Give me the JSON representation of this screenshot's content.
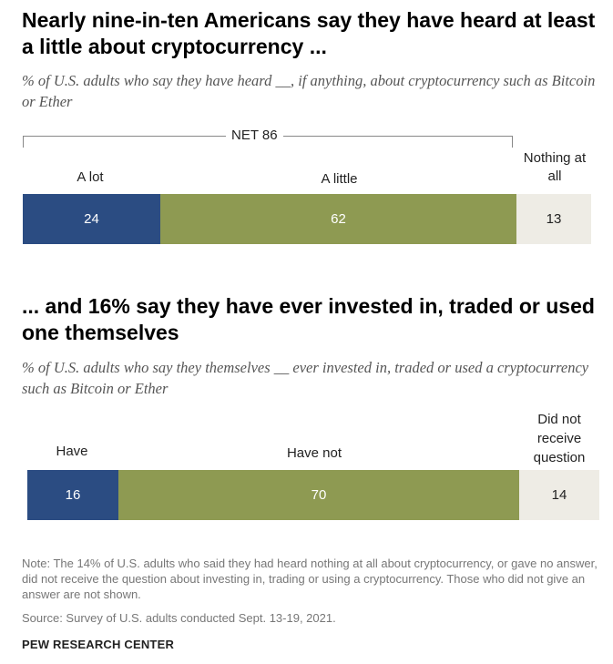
{
  "chart_data": [
    {
      "type": "bar",
      "orientation": "horizontal-stacked",
      "title": "Nearly nine-in-ten Americans say they have heard at least a little about cryptocurrency ...",
      "subtitle": "% of U.S. adults who say they have heard __, if anything, about cryptocurrency such as Bitcoin or Ether",
      "net_label": "NET 86",
      "categories": [
        "A lot",
        "A little",
        "Nothing at all"
      ],
      "values": [
        24,
        62,
        13
      ],
      "colors": [
        "#2b4c82",
        "#8e9a52",
        "#eeece5"
      ]
    },
    {
      "type": "bar",
      "orientation": "horizontal-stacked",
      "title": "... and 16% say they have ever invested in, traded or used one themselves",
      "subtitle": "% of U.S. adults who say they themselves __ ever invested in, traded or used a cryptocurrency such as Bitcoin or Ether",
      "categories": [
        "Have",
        "Have not",
        "Did not receive question"
      ],
      "values": [
        16,
        70,
        14
      ],
      "colors": [
        "#2b4c82",
        "#8e9a52",
        "#eeece5"
      ]
    }
  ],
  "footer": {
    "note": "Note: The 14% of U.S. adults who said they had heard nothing at all about cryptocurrency, or gave no answer, did not receive the question about investing in, trading or using a cryptocurrency. Those who did not give an answer are not shown.",
    "source": "Source: Survey of U.S. adults conducted Sept. 13-19, 2021.",
    "brand": "PEW RESEARCH CENTER"
  }
}
